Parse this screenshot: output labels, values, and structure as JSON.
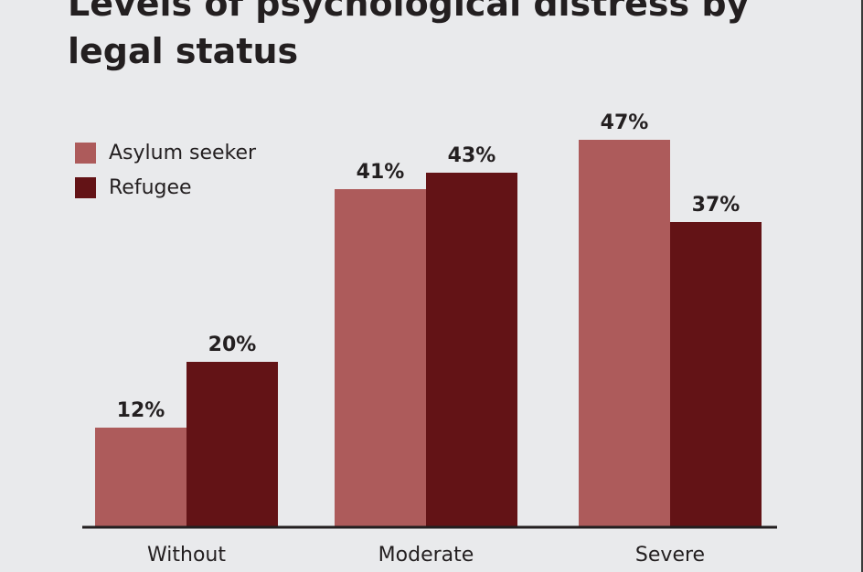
{
  "chart_data": {
    "type": "bar",
    "title": "Levels of psychological distress by legal status",
    "categories": [
      "Without",
      "Moderate",
      "Severe"
    ],
    "series": [
      {
        "name": "Asylum seeker",
        "values": [
          12,
          41,
          47
        ],
        "color": "#ad5b5b"
      },
      {
        "name": "Refugee",
        "values": [
          20,
          43,
          37
        ],
        "color": "#631316"
      }
    ],
    "value_suffix": "%",
    "xlabel": "",
    "ylabel": "",
    "ylim": [
      0,
      47
    ],
    "grid": false,
    "legend_position": "top-left"
  }
}
